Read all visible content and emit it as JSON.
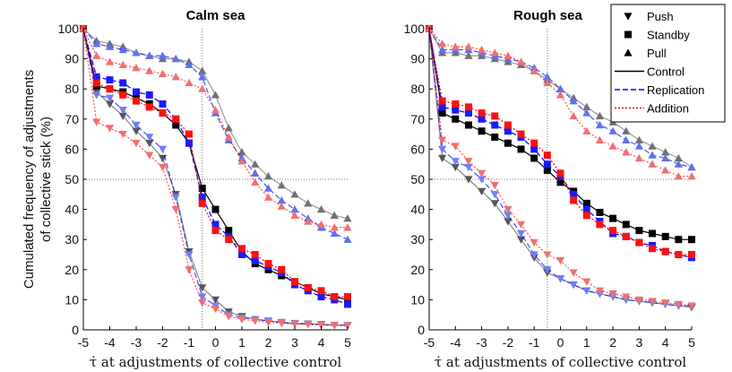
{
  "chart_data": [
    {
      "type": "line",
      "title": "Calm sea",
      "xlabel": "τ̇ at adjustments of collective control",
      "ylabel": "Cumulated frequency of adjustments of collective stick (%)",
      "ylabel_lines": [
        "Cumulated frequency of adjustments",
        "of collective stick (%)"
      ],
      "xlim": [
        -5,
        5
      ],
      "ylim": [
        0,
        100
      ],
      "xticks": [
        -5,
        -4,
        -3,
        -2,
        -1,
        0,
        1,
        2,
        3,
        4,
        5
      ],
      "yticks": [
        0,
        10,
        20,
        30,
        40,
        50,
        60,
        70,
        80,
        90,
        100
      ],
      "refline_x": -0.5,
      "refline_y": 50,
      "x": [
        -5,
        -4.5,
        -4,
        -3.5,
        -3,
        -2.5,
        -2,
        -1.5,
        -1,
        -0.5,
        0,
        0.5,
        1,
        1.5,
        2,
        2.5,
        3,
        3.5,
        4,
        4.5,
        5
      ],
      "series": [
        {
          "name": "Push",
          "condition": "Control",
          "values": [
            100,
            79,
            75,
            71,
            66,
            62,
            57,
            45,
            26,
            14,
            10,
            6,
            4.5,
            3.5,
            3,
            2.5,
            2,
            2,
            1.8,
            1.6,
            1.5
          ]
        },
        {
          "name": "Push",
          "condition": "Replication",
          "values": [
            100,
            78,
            77,
            73,
            68,
            64,
            60,
            44,
            25,
            11,
            8,
            5,
            4,
            3.5,
            3,
            2.5,
            2.2,
            2,
            1.8,
            1.6,
            1.5
          ]
        },
        {
          "name": "Push",
          "condition": "Addition",
          "values": [
            100,
            69,
            67,
            65,
            62,
            58,
            54,
            40,
            20,
            9,
            7,
            4.5,
            3.5,
            3,
            2.5,
            2.2,
            2,
            1.8,
            1.6,
            1.5,
            1.4
          ]
        },
        {
          "name": "Standby",
          "condition": "Control",
          "values": [
            100,
            81,
            80,
            79,
            77,
            75,
            72,
            68,
            62,
            47,
            40,
            33,
            26,
            22,
            20,
            18,
            16,
            14,
            12,
            11,
            10
          ]
        },
        {
          "name": "Standby",
          "condition": "Replication",
          "values": [
            100,
            84,
            83,
            82,
            79,
            78,
            75,
            70,
            62,
            44,
            35,
            31,
            25,
            23,
            21,
            19,
            15,
            13,
            11,
            10,
            8.5
          ]
        },
        {
          "name": "Standby",
          "condition": "Addition",
          "values": [
            100,
            82,
            80,
            78,
            76,
            74,
            72,
            70,
            65,
            42,
            33,
            30,
            27,
            25,
            22,
            20,
            16,
            14,
            13,
            11,
            11
          ]
        },
        {
          "name": "Pull",
          "condition": "Control",
          "values": [
            100,
            96,
            95,
            94,
            92,
            91,
            90,
            90,
            89,
            86,
            78,
            67,
            59,
            55,
            51,
            48,
            45,
            42,
            40,
            38,
            37
          ]
        },
        {
          "name": "Pull",
          "condition": "Replication",
          "values": [
            100,
            95,
            94,
            93,
            92,
            91,
            91,
            90,
            88,
            84,
            72,
            63,
            57,
            52,
            47,
            43,
            40,
            37,
            34,
            32,
            30
          ]
        },
        {
          "name": "Pull",
          "condition": "Addition",
          "values": [
            100,
            91,
            89,
            88,
            87,
            86,
            85,
            84,
            82,
            80,
            73,
            64,
            56,
            49,
            44,
            41,
            38,
            36,
            35,
            34,
            34
          ]
        }
      ]
    },
    {
      "type": "line",
      "title": "Rough sea",
      "xlabel": "τ̇ at adjustments of collective control",
      "xlim": [
        -5,
        5
      ],
      "ylim": [
        0,
        100
      ],
      "xticks": [
        -5,
        -4,
        -3,
        -2,
        -1,
        0,
        1,
        2,
        3,
        4,
        5
      ],
      "yticks": [
        0,
        10,
        20,
        30,
        40,
        50,
        60,
        70,
        80,
        90,
        100
      ],
      "refline_x": -0.5,
      "refline_y": 50,
      "x": [
        -5,
        -4.5,
        -4,
        -3.5,
        -3,
        -2.5,
        -2,
        -1.5,
        -1,
        -0.5,
        0,
        0.5,
        1,
        1.5,
        2,
        2.5,
        3,
        3.5,
        4,
        4.5,
        5
      ],
      "series": [
        {
          "name": "Push",
          "condition": "Control",
          "values": [
            100,
            57,
            54,
            50,
            46,
            42,
            36,
            30,
            24,
            19,
            17,
            15,
            13,
            12,
            11,
            10,
            9.5,
            9,
            8.5,
            8,
            7.5
          ]
        },
        {
          "name": "Push",
          "condition": "Replication",
          "values": [
            100,
            60,
            56,
            54,
            50,
            45,
            38,
            32,
            25,
            20,
            17,
            15,
            13,
            12,
            11,
            10,
            9.5,
            9,
            8.5,
            8,
            8
          ]
        },
        {
          "name": "Push",
          "condition": "Addition",
          "values": [
            100,
            63,
            61,
            56,
            52,
            48,
            40,
            35,
            29,
            25,
            23,
            19,
            16,
            13,
            12,
            11,
            10,
            9.5,
            9,
            8.5,
            8
          ]
        },
        {
          "name": "Standby",
          "condition": "Control",
          "values": [
            100,
            72,
            70,
            68,
            66,
            64,
            62,
            60,
            57,
            53,
            49,
            46,
            42,
            39,
            37,
            35,
            33,
            32,
            31,
            30,
            30
          ]
        },
        {
          "name": "Standby",
          "condition": "Replication",
          "values": [
            100,
            74,
            73,
            72,
            70,
            68,
            66,
            64,
            60,
            55,
            51,
            45,
            40,
            36,
            32,
            31,
            29,
            28,
            26,
            25,
            24
          ]
        },
        {
          "name": "Standby",
          "condition": "Addition",
          "values": [
            100,
            76,
            75,
            74,
            72,
            71,
            68,
            65,
            62,
            58,
            52,
            43,
            38,
            35,
            33,
            31,
            29,
            27,
            26,
            25,
            25
          ]
        },
        {
          "name": "Pull",
          "condition": "Control",
          "values": [
            100,
            92,
            92,
            91,
            91,
            90,
            89,
            88,
            86,
            83,
            80,
            77,
            74,
            71,
            69,
            66,
            63,
            61,
            59,
            57,
            54
          ]
        },
        {
          "name": "Pull",
          "condition": "Replication",
          "values": [
            100,
            93,
            93,
            93,
            92,
            91,
            90,
            89,
            87,
            84,
            80,
            76,
            72,
            68,
            66,
            63,
            61,
            58,
            57,
            55,
            54
          ]
        },
        {
          "name": "Pull",
          "condition": "Addition",
          "values": [
            100,
            95,
            94,
            94,
            93,
            92,
            91,
            89,
            86,
            82,
            78,
            71,
            66,
            63,
            61,
            59,
            57,
            55,
            53,
            51,
            51
          ]
        }
      ]
    }
  ],
  "legend": {
    "placement": "top-right",
    "markers": [
      {
        "label": "Push",
        "marker": "triangle-down"
      },
      {
        "label": "Standby",
        "marker": "square"
      },
      {
        "label": "Pull",
        "marker": "triangle-up"
      }
    ],
    "lines": [
      {
        "label": "Control",
        "color": "#000000",
        "dash": "solid"
      },
      {
        "label": "Replication",
        "color": "#0000ff",
        "dash": "dashed"
      },
      {
        "label": "Addition",
        "color": "#ff0000",
        "dash": "dotted"
      }
    ]
  },
  "colors": {
    "Control": {
      "Push": "#555555",
      "Standby": "#000000",
      "Pull": "#707070"
    },
    "Replication": {
      "Push": "#6f7ff5",
      "Standby": "#1a1aff",
      "Pull": "#6070f0"
    },
    "Addition": {
      "Push": "#f07070",
      "Standby": "#ff1010",
      "Pull": "#f07070"
    }
  }
}
